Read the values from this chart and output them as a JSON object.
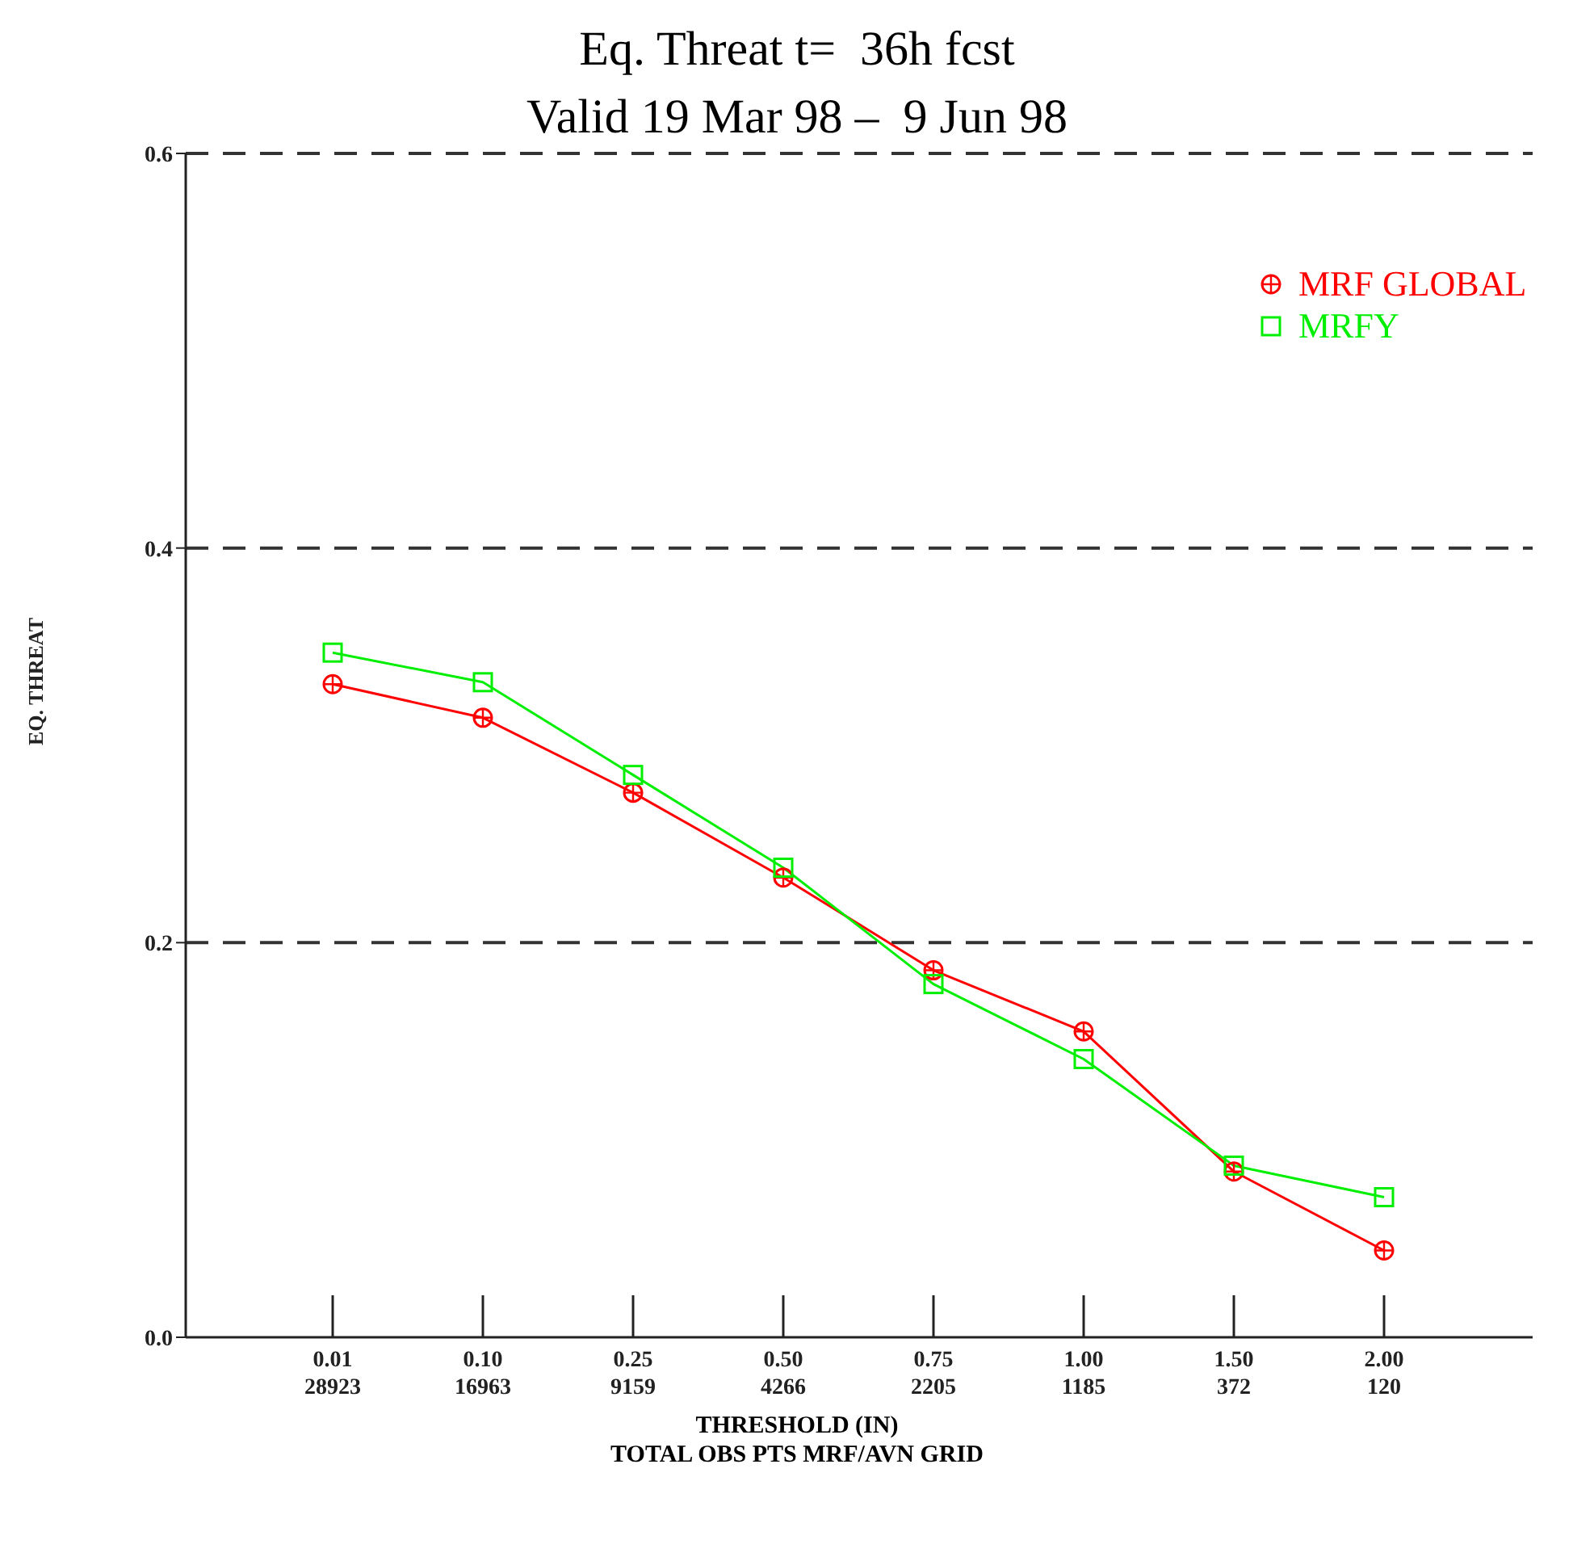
{
  "chart_data": {
    "type": "line",
    "title": "Eq. Threat t=  36h fcst",
    "subtitle": "Valid 19 Mar 98 –  9 Jun 98",
    "xlabel": "THRESHOLD (IN)",
    "ylabel": "EQ. THREAT",
    "annotations": [
      "TOTAL OBS PTS MRF/AVN GRID"
    ],
    "categories": [
      "0.01\n28923",
      "0.10\n16963",
      "0.25\n9159",
      "0.50\n4266",
      "0.75\n2205",
      "1.00\n1185",
      "1.50\n372",
      "2.00\n120"
    ],
    "series": [
      {
        "name": "MRF GLOBAL",
        "color": "#ff0000",
        "marker": "circle",
        "values": [
          0.331,
          0.314,
          0.276,
          0.233,
          0.186,
          0.155,
          0.084,
          0.044
        ]
      },
      {
        "name": "MRFY",
        "color": "#00ee00",
        "marker": "square",
        "values": [
          0.347,
          0.332,
          0.285,
          0.238,
          0.179,
          0.141,
          0.087,
          0.071
        ]
      }
    ],
    "ylim": [
      0,
      0.6
    ],
    "yticks": [
      {
        "value": 0,
        "label": "0.0"
      },
      {
        "value": 0.2,
        "label": "0.2"
      },
      {
        "value": 0.4,
        "label": "0.4"
      },
      {
        "value": 0.6,
        "label": "0.6"
      }
    ],
    "grid": "y",
    "legend": "top right",
    "line_style": "solid"
  }
}
